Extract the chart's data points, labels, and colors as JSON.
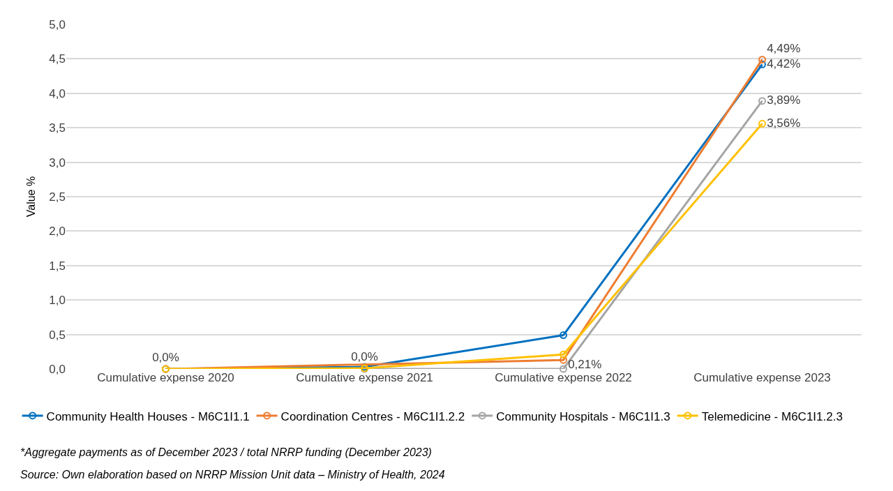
{
  "chart_data": {
    "type": "line",
    "categories": [
      "Cumulative expense 2020",
      "Cumulative expense 2021",
      "Cumulative expense 2022",
      "Cumulative expense 2023"
    ],
    "ylabel": "Value %",
    "ylim": [
      0,
      5
    ],
    "yticks": [
      {
        "value": 0,
        "label": "0,0"
      },
      {
        "value": 0.5,
        "label": "0,5"
      },
      {
        "value": 1,
        "label": "1,0"
      },
      {
        "value": 1.5,
        "label": "1,5"
      },
      {
        "value": 2,
        "label": "2,0"
      },
      {
        "value": 2.5,
        "label": "2,5"
      },
      {
        "value": 3,
        "label": "3,0"
      },
      {
        "value": 3.5,
        "label": "3,5"
      },
      {
        "value": 4,
        "label": "4,0"
      },
      {
        "value": 4.5,
        "label": "4,5"
      },
      {
        "value": 5,
        "label": "5,0"
      }
    ],
    "series": [
      {
        "name": "Community Health Houses - M6C1I1.1",
        "color": "#0070c0",
        "values": [
          0,
          0.03,
          0.49,
          4.42
        ],
        "value_labels": [
          null,
          null,
          null,
          "4,42%"
        ]
      },
      {
        "name": "Coordination Centres - M6C1I1.2.2",
        "color": "#ed7d31",
        "values": [
          0,
          null,
          0.13,
          4.49
        ],
        "value_labels": [
          null,
          null,
          null,
          "4,49%"
        ]
      },
      {
        "name": "Community Hospitals - M6C1I1.3",
        "color": "#a5a5a5",
        "values": [
          0,
          0,
          0,
          3.89
        ],
        "value_labels": [
          null,
          null,
          null,
          "3,89%"
        ]
      },
      {
        "name": "Telemedicine - M6C1I1.2.3",
        "color": "#ffc000",
        "values": [
          0,
          0.01,
          0.21,
          3.56
        ],
        "value_labels": [
          "0,0%",
          "0,0%",
          "0,21%",
          "3,56%"
        ]
      }
    ],
    "marker": "circle",
    "line_style": "solid",
    "grid": "y",
    "legend": "bottom",
    "annotations": [
      "*Aggregate payments as of December 2023 / total NRRP funding (December 2023)",
      "Source: Own elaboration based on NRRP Mission Unit data – Ministry of Health, 2024"
    ]
  }
}
